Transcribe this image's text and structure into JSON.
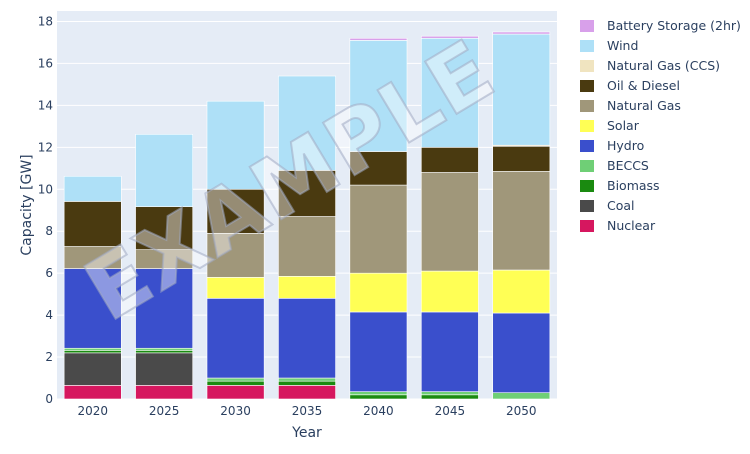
{
  "watermark": "EXAMPLE",
  "chart_data": {
    "type": "bar",
    "stacked": true,
    "xlabel": "Year",
    "ylabel": "Capacity [GW]",
    "ylim": [
      0,
      18.5
    ],
    "yticks": [
      0,
      2,
      4,
      6,
      8,
      10,
      12,
      14,
      16,
      18
    ],
    "grid": true,
    "legend_position": "right",
    "categories": [
      "2020",
      "2025",
      "2030",
      "2035",
      "2040",
      "2045",
      "2050"
    ],
    "series": [
      {
        "name": "Nuclear",
        "color": "#d6175f",
        "values": [
          0.65,
          0.65,
          0.65,
          0.65,
          0.0,
          0.0,
          0.0
        ]
      },
      {
        "name": "Coal",
        "color": "#4a4a4a",
        "values": [
          1.55,
          1.55,
          0.0,
          0.0,
          0.0,
          0.0,
          0.0
        ]
      },
      {
        "name": "Biomass",
        "color": "#1a8a10",
        "values": [
          0.12,
          0.12,
          0.2,
          0.2,
          0.2,
          0.2,
          0.0
        ]
      },
      {
        "name": "BECCS",
        "color": "#6fcf76",
        "values": [
          0.1,
          0.1,
          0.15,
          0.15,
          0.15,
          0.15,
          0.3
        ]
      },
      {
        "name": "Hydro",
        "color": "#3a4fcc",
        "values": [
          3.8,
          3.8,
          3.8,
          3.8,
          3.8,
          3.8,
          3.8
        ]
      },
      {
        "name": "Solar",
        "color": "#ffff55",
        "values": [
          0.0,
          0.0,
          1.0,
          1.05,
          1.85,
          1.95,
          2.05
        ]
      },
      {
        "name": "Natural Gas",
        "color": "#a0977a",
        "values": [
          1.05,
          0.9,
          2.1,
          2.85,
          4.2,
          4.7,
          4.7
        ]
      },
      {
        "name": "Oil & Diesel",
        "color": "#4a3a10",
        "values": [
          2.15,
          2.05,
          2.1,
          2.2,
          1.6,
          1.2,
          1.2
        ]
      },
      {
        "name": "Natural Gas (CCS)",
        "color": "#f0e4c0",
        "values": [
          0.0,
          0.0,
          0.0,
          0.0,
          0.0,
          0.0,
          0.05
        ]
      },
      {
        "name": "Wind",
        "color": "#aee0f7",
        "values": [
          1.2,
          3.45,
          4.2,
          4.5,
          5.3,
          5.2,
          5.3
        ]
      },
      {
        "name": "Battery Storage (2hr)",
        "color": "#d8a0ea",
        "values": [
          0.0,
          0.0,
          0.0,
          0.0,
          0.1,
          0.1,
          0.1
        ]
      }
    ]
  }
}
